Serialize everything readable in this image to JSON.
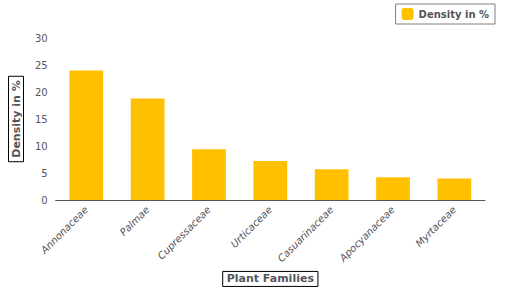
{
  "chart_data": {
    "type": "bar",
    "xlabel": "Plant Families",
    "ylabel": "Density in %",
    "categories": [
      "Annonaceae",
      "Palmae",
      "Cupressaceae",
      "Urticaceae",
      "Casuarinaceae",
      "Apocyanaceae",
      "Myrtaceae"
    ],
    "series": [
      {
        "name": "Density in %",
        "color": "#FFC000",
        "values": [
          24.0,
          18.8,
          9.4,
          7.2,
          5.7,
          4.2,
          4.0
        ]
      }
    ],
    "ylim": [
      0,
      30
    ],
    "yticks": [
      0,
      5,
      10,
      15,
      20,
      25,
      30
    ],
    "grid": false,
    "legend": "upper right"
  }
}
